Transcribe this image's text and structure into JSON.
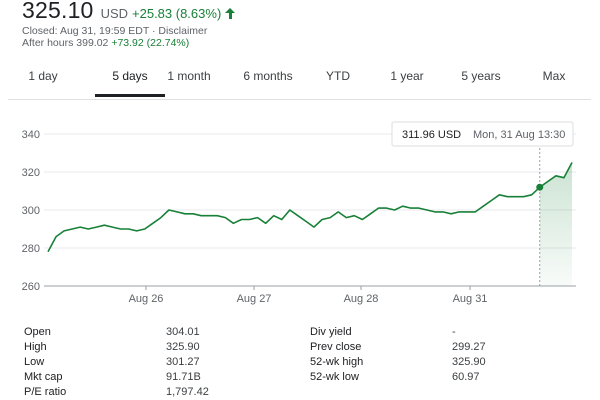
{
  "quote": {
    "price": "325.10",
    "currency": "USD",
    "change": "+25.83 (8.63%)",
    "closed_text": "Closed: Aug 31, 19:59 EDT · Disclaimer",
    "after_hours_label": "After hours",
    "after_hours_price": "399.02",
    "after_hours_change": "+73.92 (22.74%)",
    "positive_color": "#188038",
    "arrow_icon": "arrow-up-icon"
  },
  "tabs": [
    {
      "label": "1 day",
      "active": false
    },
    {
      "label": "5 days",
      "active": true
    },
    {
      "label": "1 month",
      "active": false
    },
    {
      "label": "6 months",
      "active": false
    },
    {
      "label": "YTD",
      "active": false
    },
    {
      "label": "1 year",
      "active": false
    },
    {
      "label": "5 years",
      "active": false
    },
    {
      "label": "Max",
      "active": false
    }
  ],
  "tooltip": {
    "price": "311.96 USD",
    "time": "Mon, 31 Aug 13:30"
  },
  "chart_data": {
    "type": "line",
    "x_tick_labels": [
      "Aug 26",
      "Aug 27",
      "Aug 28",
      "Aug 31"
    ],
    "y_ticks": [
      260,
      280,
      300,
      320,
      340
    ],
    "ylim": [
      260,
      340
    ],
    "grid": true,
    "line_color": "#188038",
    "series": [
      {
        "values": [
          278,
          286,
          289,
          290,
          291,
          290,
          291,
          292,
          291,
          290,
          290,
          289,
          290,
          293,
          296,
          300,
          299,
          298,
          298,
          297,
          297,
          297,
          296,
          293,
          295,
          295,
          296,
          293,
          297,
          295,
          300,
          297,
          294,
          291,
          295,
          296,
          299,
          296,
          297,
          295,
          298,
          301,
          301,
          300,
          302,
          301,
          301,
          300,
          299,
          299,
          298,
          299,
          299,
          299,
          302,
          305,
          308,
          307,
          307,
          307,
          308,
          312,
          315,
          318,
          317,
          325
        ]
      }
    ],
    "hover_index": 61
  },
  "stats": {
    "col1": [
      {
        "label": "Open",
        "value": "304.01"
      },
      {
        "label": "High",
        "value": "325.90"
      },
      {
        "label": "Low",
        "value": "301.27"
      },
      {
        "label": "Mkt cap",
        "value": "91.71B"
      },
      {
        "label": "P/E ratio",
        "value": "1,797.42"
      }
    ],
    "col2": [
      {
        "label": "Div yield",
        "value": "-"
      },
      {
        "label": "Prev close",
        "value": "299.27"
      },
      {
        "label": "52-wk high",
        "value": "325.90"
      },
      {
        "label": "52-wk low",
        "value": "60.97"
      }
    ]
  }
}
